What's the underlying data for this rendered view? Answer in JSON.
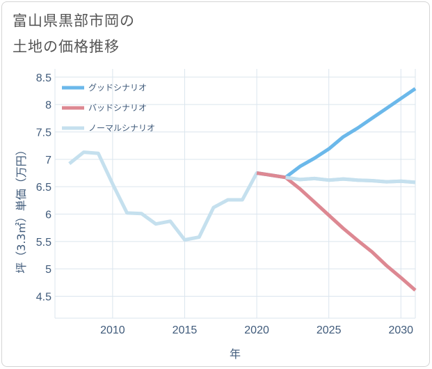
{
  "title_line1": "富山県黒部市岡の",
  "title_line2": "土地の価格推移",
  "chart_data": {
    "type": "line",
    "xlabel": "年",
    "ylabel": "坪（3.3㎡）単価（万円）",
    "xlim": [
      2006,
      2031
    ],
    "ylim": [
      4.1,
      8.65
    ],
    "x_ticks": [
      2010,
      2015,
      2020,
      2025,
      2030
    ],
    "y_ticks": [
      4.5,
      5,
      5.5,
      6,
      6.5,
      7,
      7.5,
      8,
      8.5
    ],
    "legend_position": "top-left",
    "series": [
      {
        "name": "グッドシナリオ",
        "color": "#6bb8ea",
        "x": [
          2020,
          2021,
          2022,
          2023,
          2024,
          2025,
          2026,
          2027,
          2028,
          2029,
          2030,
          2031
        ],
        "values": [
          6.75,
          6.71,
          6.67,
          6.87,
          7.02,
          7.19,
          7.41,
          7.57,
          7.75,
          7.93,
          8.11,
          8.29
        ]
      },
      {
        "name": "バッドシナリオ",
        "color": "#dd8892",
        "x": [
          2020,
          2021,
          2022,
          2023,
          2024,
          2025,
          2026,
          2027,
          2028,
          2029,
          2030,
          2031
        ],
        "values": [
          6.75,
          6.71,
          6.67,
          6.46,
          6.22,
          5.98,
          5.74,
          5.52,
          5.31,
          5.06,
          4.84,
          4.61
        ]
      },
      {
        "name": "ノーマルシナリオ",
        "color": "#c5e0ee",
        "x": [
          2007,
          2008,
          2009,
          2010,
          2011,
          2012,
          2013,
          2014,
          2015,
          2016,
          2017,
          2018,
          2019,
          2020,
          2021,
          2022,
          2023,
          2024,
          2025,
          2026,
          2027,
          2028,
          2029,
          2030,
          2031
        ],
        "values": [
          6.92,
          7.13,
          7.11,
          6.55,
          6.02,
          6.01,
          5.82,
          5.87,
          5.53,
          5.58,
          6.12,
          6.26,
          6.26,
          6.75,
          6.71,
          6.67,
          6.63,
          6.65,
          6.62,
          6.64,
          6.62,
          6.61,
          6.59,
          6.6,
          6.58
        ]
      }
    ]
  }
}
